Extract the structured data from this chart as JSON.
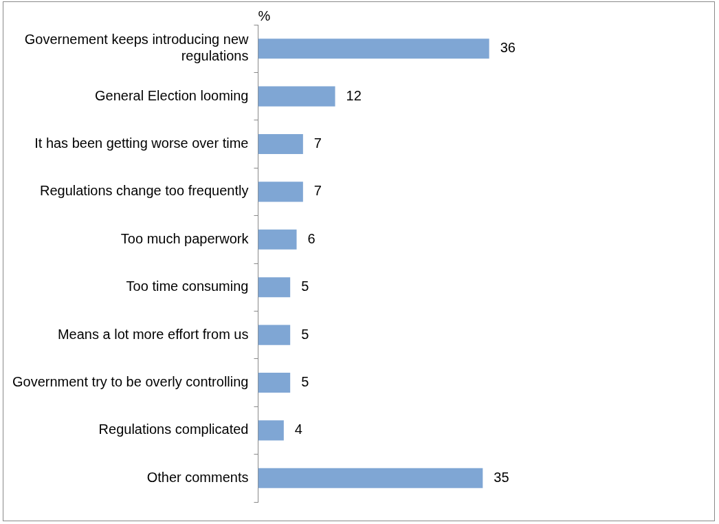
{
  "chart_data": {
    "type": "bar",
    "orientation": "horizontal",
    "xlabel": "%",
    "categories": [
      "Governement keeps introducing new regulations",
      "General Election looming",
      "It has been getting worse over time",
      "Regulations change too frequently",
      "Too much paperwork",
      "Too time consuming",
      "Means a lot more effort from us",
      "Government try to be overly controlling",
      "Regulations complicated",
      "Other comments"
    ],
    "values": [
      36,
      12,
      7,
      7,
      6,
      5,
      5,
      5,
      4,
      35
    ],
    "color": "#7fa6d4",
    "data_labels": true,
    "grid": false,
    "legend": false,
    "tick_labels": "y"
  }
}
